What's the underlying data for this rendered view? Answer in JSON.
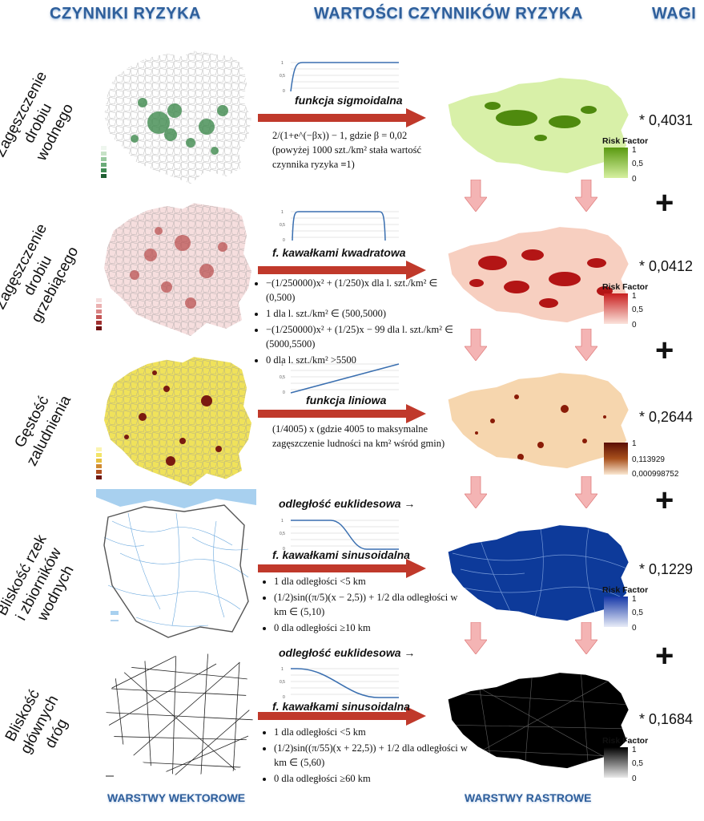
{
  "headers": {
    "factors": "CZYNNIKI RYZYKA",
    "values": "WARTOŚCI CZYNNIKÓW RYZYKA",
    "weights": "WAGI"
  },
  "footer": {
    "vector": "WARSTWY WEKTOROWE",
    "raster": "WARSTWY RASTROWE"
  },
  "legend_title": "Risk Factor",
  "plus_sign": "+",
  "colors": {
    "header_blue": "#2f5f9b",
    "arrow_red": "#c0392b",
    "down_arrow_pink": "#f4b4b4",
    "map_waterfowl": "#b8e07a",
    "map_gallinaceous": "#c81f1f",
    "map_population": "#f3c79a",
    "map_rivers": "#0d3a9a",
    "map_roads": "#000000"
  },
  "rows": [
    {
      "label_line1": "Zagęszczenie",
      "label_line2": "drobiu",
      "label_line3": "wodnego",
      "function_name": "funkcja sigmoidalna",
      "formula_main": "2/(1+e^(−βx)) − 1,  gdzie β = 0,02",
      "formula_note_1": "(powyżej 1000 szt./km² stała wartość",
      "formula_note_2": "czynnika ryzyka ≡1)",
      "legend_values": [
        "1",
        "0,5",
        "0"
      ],
      "weight": "* 0,4031"
    },
    {
      "label_line1": "Zagęszczenie",
      "label_line2": "drobiu",
      "label_line3": "grzebiącego",
      "function_name": "f. kawałkami kwadratowa",
      "formula_items": [
        "−(1/250000)x² + (1/250)x   dla l. szt./km² ∈ (0,500)",
        "1  dla l. szt./km² ∈ (500,5000)",
        "−(1/250000)x² + (1/25)x − 99   dla l. szt./km² ∈ (5000,5500)",
        "0  dla l. szt./km² >5500"
      ],
      "legend_values": [
        "1",
        "0,5",
        "0"
      ],
      "weight": "* 0,0412"
    },
    {
      "label_line1": "Gęstość",
      "label_line2": "zaludnienia",
      "function_name": "funkcja liniowa",
      "formula_main": "(1/4005) x   (gdzie 4005 to maksymalne",
      "formula_note_1": "zagęszczenie ludności na km² wśród gmin)",
      "legend_values": [
        "1",
        "0,113929",
        "0,000998752"
      ],
      "weight": "* 0,2644"
    },
    {
      "label_line1": "Bliskość rzek",
      "label_line2": "i zbiorników",
      "label_line3": "wodnych",
      "distance_label": "odległość euklidesowa →",
      "function_name": "f. kawałkami sinusoidalna",
      "formula_items": [
        "1  dla odległości <5 km",
        "(1/2)sin((π/5)(x − 2,5)) + 1/2   dla odległości w km ∈ (5,10)",
        "0  dla odległości ≥10 km"
      ],
      "legend_values": [
        "1",
        "0,5",
        "0"
      ],
      "weight": "* 0,1229"
    },
    {
      "label_line1": "Bliskość",
      "label_line2": "głównych",
      "label_line3": "dróg",
      "distance_label": "odległość euklidesowa →",
      "function_name": "f. kawałkami sinusoidalna",
      "formula_items": [
        "1  dla odległości <5 km",
        "(1/2)sin((π/55)(x + 22,5)) + 1/2   dla odległości w km ∈ (5,60)",
        "0  dla odległości ≥60 km"
      ],
      "legend_values": [
        "1",
        "0,5",
        "0"
      ],
      "weight": "* 0,1684"
    }
  ]
}
